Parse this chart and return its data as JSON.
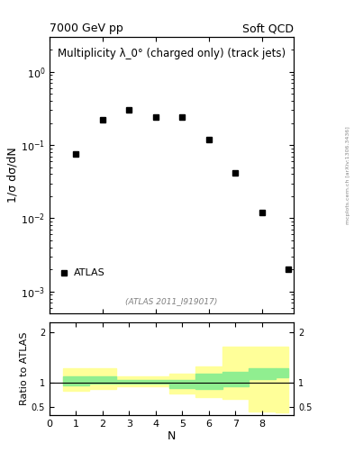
{
  "title_left": "7000 GeV pp",
  "title_right": "Soft QCD",
  "main_title": "Multiplicity λ_0° (charged only) (track jets)",
  "watermark": "(ATLAS 2011_I919017)",
  "ylabel_main": "1/σ dσ/dN",
  "ylabel_ratio": "Ratio to ATLAS",
  "xlabel": "N",
  "arxiv_label": "mcplots.cern.ch [arXiv:1306.3436]",
  "data_x": [
    1,
    2,
    3,
    4,
    5,
    6,
    7,
    8,
    9
  ],
  "data_y": [
    0.075,
    0.22,
    0.3,
    0.24,
    0.24,
    0.12,
    0.042,
    0.012,
    0.002
  ],
  "legend_label": "ATLAS",
  "ratio_xedges": [
    0.5,
    1.5,
    2.5,
    4.5,
    5.5,
    6.5,
    7.5,
    8.5,
    9.0
  ],
  "ratio_green_lo": [
    0.95,
    0.97,
    0.98,
    0.88,
    0.87,
    0.93,
    1.07,
    1.1
  ],
  "ratio_green_hi": [
    1.12,
    1.12,
    1.05,
    1.05,
    1.18,
    1.22,
    1.28,
    1.28
  ],
  "ratio_yellow_lo": [
    0.83,
    0.87,
    0.92,
    0.78,
    0.7,
    0.67,
    0.42,
    0.4
  ],
  "ratio_yellow_hi": [
    1.28,
    1.28,
    1.12,
    1.18,
    1.32,
    1.72,
    1.72,
    1.72
  ],
  "main_ylim_log": [
    0.0005,
    3.0
  ],
  "ratio_ylim": [
    0.35,
    2.2
  ],
  "xlim": [
    0,
    9.2
  ],
  "background_color": "#ffffff",
  "marker_color": "#000000",
  "marker_size": 5,
  "green_color": "#90EE90",
  "yellow_color": "#FFFF99",
  "line_color": "#000000"
}
